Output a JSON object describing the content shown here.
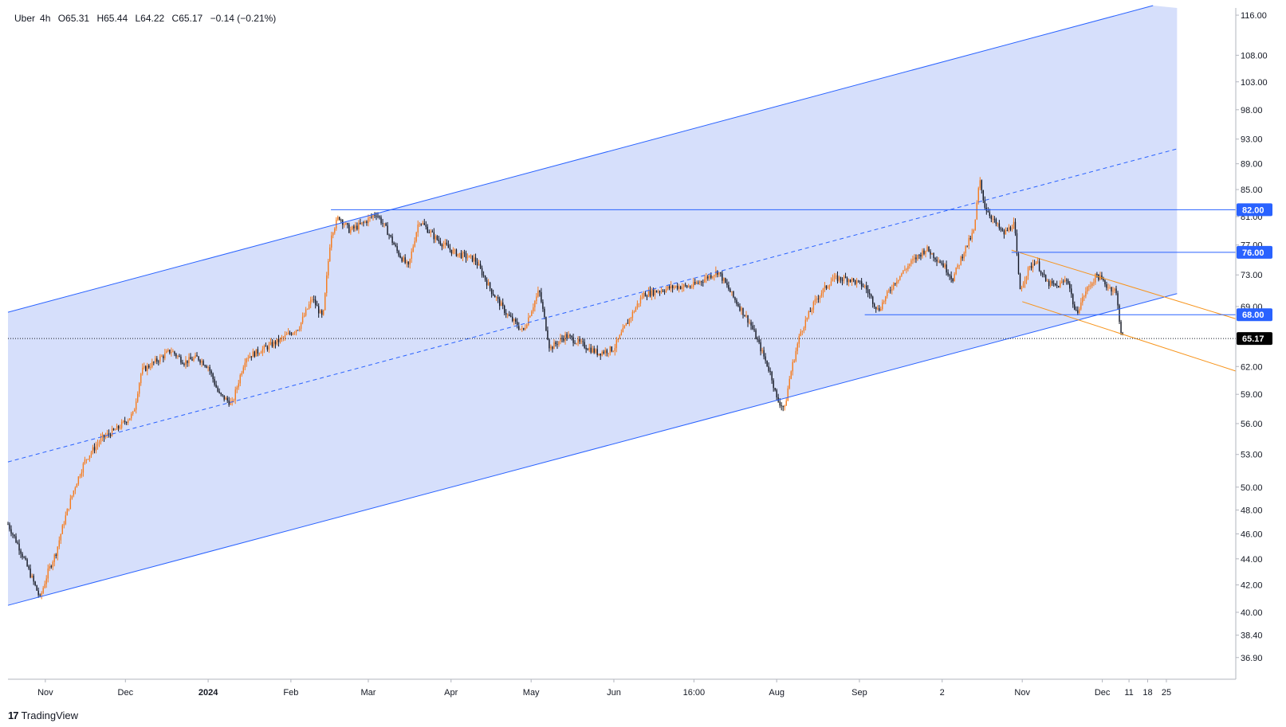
{
  "legend": {
    "symbol": "Uber",
    "interval": "4h",
    "open": "O65.31",
    "high": "H65.44",
    "low": "L64.22",
    "close": "C65.17",
    "change": "−0.14 (−0.21%)"
  },
  "brand": {
    "name": "TradingView",
    "icon": "tradingview-logo-icon"
  },
  "colors": {
    "channel_fill": "#d1dcfb",
    "channel_line": "#2962ff",
    "orange": "#f7931a",
    "up": "#f57c1f",
    "down": "#131722",
    "price_badge": "#000000",
    "level_badge": "#2962ff"
  },
  "chart_data": {
    "type": "candlestick",
    "y_scale": "log",
    "ylim": [
      35.5,
      117.5
    ],
    "y_ticks": [
      "116.00",
      "108.00",
      "103.00",
      "98.00",
      "93.00",
      "89.00",
      "85.00",
      "81.00",
      "77.00",
      "73.00",
      "69.00",
      "62.00",
      "59.00",
      "56.00",
      "53.00",
      "50.00",
      "48.00",
      "46.00",
      "44.00",
      "42.00",
      "40.00",
      "38.40",
      "36.90"
    ],
    "y_tick_values": [
      116,
      108,
      103,
      98,
      93,
      89,
      85,
      81,
      77,
      73,
      69,
      62,
      59,
      56,
      53,
      50,
      48,
      46,
      44,
      42,
      40,
      38.4,
      36.9
    ],
    "x_ticks": [
      {
        "label": "Nov",
        "date": "2023-11-01",
        "bold": false
      },
      {
        "label": "Dec",
        "date": "2023-12-01",
        "bold": false
      },
      {
        "label": "2024",
        "date": "2024-01-01",
        "bold": true
      },
      {
        "label": "Feb",
        "date": "2024-02-01",
        "bold": false
      },
      {
        "label": "Mar",
        "date": "2024-03-01",
        "bold": false
      },
      {
        "label": "Apr",
        "date": "2024-04-01",
        "bold": false
      },
      {
        "label": "May",
        "date": "2024-05-01",
        "bold": false
      },
      {
        "label": "Jun",
        "date": "2024-06-01",
        "bold": false
      },
      {
        "label": "16:00",
        "date": "2024-07-01",
        "bold": false
      },
      {
        "label": "Aug",
        "date": "2024-08-01",
        "bold": false
      },
      {
        "label": "Sep",
        "date": "2024-09-01",
        "bold": false
      },
      {
        "label": "2",
        "date": "2024-10-02",
        "bold": false
      },
      {
        "label": "Nov",
        "date": "2024-11-01",
        "bold": false
      },
      {
        "label": "Dec",
        "date": "2024-12-01",
        "bold": false
      },
      {
        "label": "11",
        "date": "2024-12-11",
        "bold": false
      },
      {
        "label": "18",
        "date": "2024-12-18",
        "bold": false
      },
      {
        "label": "25",
        "date": "2024-12-25",
        "bold": false
      }
    ],
    "price_path": [
      [
        "2023-10-18",
        46.8
      ],
      [
        "2023-10-22",
        45.0
      ],
      [
        "2023-10-25",
        43.5
      ],
      [
        "2023-10-28",
        42.0
      ],
      [
        "2023-10-30",
        41.0
      ],
      [
        "2023-11-02",
        43.0
      ],
      [
        "2023-11-05",
        44.5
      ],
      [
        "2023-11-08",
        47.0
      ],
      [
        "2023-11-12",
        50.0
      ],
      [
        "2023-11-16",
        52.5
      ],
      [
        "2023-11-22",
        54.5
      ],
      [
        "2023-11-28",
        55.5
      ],
      [
        "2023-12-04",
        57.0
      ],
      [
        "2023-12-07",
        61.5
      ],
      [
        "2023-12-12",
        62.5
      ],
      [
        "2023-12-18",
        63.8
      ],
      [
        "2023-12-23",
        62.5
      ],
      [
        "2023-12-28",
        63.0
      ],
      [
        "2024-01-01",
        62.0
      ],
      [
        "2024-01-05",
        59.0
      ],
      [
        "2024-01-10",
        58.0
      ],
      [
        "2024-01-15",
        63.0
      ],
      [
        "2024-01-22",
        64.0
      ],
      [
        "2024-01-28",
        65.0
      ],
      [
        "2024-02-04",
        66.5
      ],
      [
        "2024-02-09",
        70.0
      ],
      [
        "2024-02-13",
        67.5
      ],
      [
        "2024-02-16",
        78.5
      ],
      [
        "2024-02-19",
        81.0
      ],
      [
        "2024-02-23",
        79.0
      ],
      [
        "2024-02-28",
        80.0
      ],
      [
        "2024-03-04",
        81.5
      ],
      [
        "2024-03-08",
        79.0
      ],
      [
        "2024-03-12",
        76.0
      ],
      [
        "2024-03-16",
        74.0
      ],
      [
        "2024-03-20",
        80.5
      ],
      [
        "2024-03-26",
        78.0
      ],
      [
        "2024-04-02",
        76.0
      ],
      [
        "2024-04-10",
        75.0
      ],
      [
        "2024-04-16",
        71.0
      ],
      [
        "2024-04-22",
        68.0
      ],
      [
        "2024-04-28",
        66.0
      ],
      [
        "2024-05-04",
        71.0
      ],
      [
        "2024-05-08",
        64.0
      ],
      [
        "2024-05-14",
        65.5
      ],
      [
        "2024-05-20",
        64.5
      ],
      [
        "2024-05-26",
        63.5
      ],
      [
        "2024-06-01",
        64.0
      ],
      [
        "2024-06-06",
        67.0
      ],
      [
        "2024-06-12",
        70.5
      ],
      [
        "2024-06-18",
        71.0
      ],
      [
        "2024-06-24",
        71.5
      ],
      [
        "2024-06-30",
        71.5
      ],
      [
        "2024-07-05",
        72.5
      ],
      [
        "2024-07-10",
        73.5
      ],
      [
        "2024-07-16",
        70.0
      ],
      [
        "2024-07-22",
        67.0
      ],
      [
        "2024-07-26",
        64.0
      ],
      [
        "2024-07-30",
        61.0
      ],
      [
        "2024-08-01",
        58.5
      ],
      [
        "2024-08-04",
        57.5
      ],
      [
        "2024-08-06",
        61.0
      ],
      [
        "2024-08-10",
        66.0
      ],
      [
        "2024-08-16",
        70.0
      ],
      [
        "2024-08-22",
        72.5
      ],
      [
        "2024-08-28",
        72.5
      ],
      [
        "2024-09-03",
        71.5
      ],
      [
        "2024-09-08",
        68.5
      ],
      [
        "2024-09-14",
        72.0
      ],
      [
        "2024-09-20",
        74.5
      ],
      [
        "2024-09-26",
        76.5
      ],
      [
        "2024-10-02",
        74.5
      ],
      [
        "2024-10-06",
        72.5
      ],
      [
        "2024-10-10",
        76.0
      ],
      [
        "2024-10-14",
        79.0
      ],
      [
        "2024-10-16",
        86.5
      ],
      [
        "2024-10-18",
        82.5
      ],
      [
        "2024-10-22",
        80.0
      ],
      [
        "2024-10-25",
        78.5
      ],
      [
        "2024-10-29",
        80.0
      ],
      [
        "2024-10-31",
        71.0
      ],
      [
        "2024-11-03",
        73.5
      ],
      [
        "2024-11-06",
        75.0
      ],
      [
        "2024-11-10",
        72.0
      ],
      [
        "2024-11-14",
        71.5
      ],
      [
        "2024-11-18",
        72.5
      ],
      [
        "2024-11-21",
        68.0
      ],
      [
        "2024-11-25",
        71.0
      ],
      [
        "2024-11-29",
        73.0
      ],
      [
        "2024-12-03",
        71.5
      ],
      [
        "2024-12-06",
        71.0
      ],
      [
        "2024-12-08",
        66.0
      ],
      [
        "2024-12-09",
        65.17
      ]
    ],
    "drawings": {
      "channel_upper": [
        [
          "2023-10-18",
          68.3
        ],
        [
          "2024-12-20",
          118.0
        ]
      ],
      "channel_mid": [
        [
          "2023-10-18",
          52.3
        ],
        [
          "2024-12-29",
          91.4
        ]
      ],
      "channel_lower": [
        [
          "2023-10-18",
          40.5
        ],
        [
          "2024-12-29",
          70.6
        ]
      ],
      "channel_fill_end": "2024-12-29",
      "hline_82": {
        "from": "2024-02-16",
        "to": "2025-01-20",
        "price": 82.0
      },
      "hline_76": {
        "from": "2024-10-28",
        "to": "2025-01-20",
        "price": 76.0
      },
      "hline_68": {
        "from": "2024-09-03",
        "to": "2025-01-20",
        "price": 68.0
      },
      "last_price_line": {
        "from": "2023-10-18",
        "to": "2025-01-20",
        "price": 65.17
      },
      "wedge_upper": [
        [
          "2024-10-28",
          76.3
        ],
        [
          "2025-01-20",
          67.5
        ]
      ],
      "wedge_lower": [
        [
          "2024-11-01",
          69.6
        ],
        [
          "2025-01-20",
          61.5
        ]
      ]
    },
    "price_badges": [
      {
        "value": "82.00",
        "price": 82.0,
        "kind": "level"
      },
      {
        "value": "76.00",
        "price": 76.0,
        "kind": "level"
      },
      {
        "value": "68.00",
        "price": 68.0,
        "kind": "level"
      },
      {
        "value": "65.17",
        "price": 65.17,
        "kind": "last"
      }
    ]
  }
}
